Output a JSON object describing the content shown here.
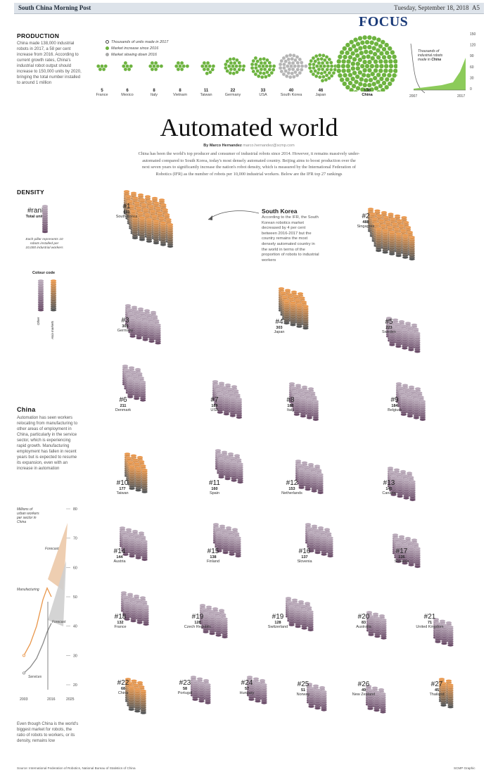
{
  "masthead": {
    "paper": "South China Morning Post",
    "date": "Tuesday, September 18, 2018",
    "page": "A5",
    "section": "FOCUS"
  },
  "production": {
    "heading": "PRODUCTION",
    "body": "China made 138,000 industrial robots in 2017, a 58 per cent increase from 2016. According to current growth rates, China's industrial robot output should increase to 150,000 units by 2020, bringing the total number installed to around 1 million",
    "legend": [
      "Thousands of units made in 2017",
      "Market increase since 2016",
      "Market slowing down 2016"
    ],
    "countries": [
      {
        "count": "5",
        "name": "France",
        "trend": "up"
      },
      {
        "count": "6",
        "name": "Mexico",
        "trend": "up"
      },
      {
        "count": "8",
        "name": "Italy",
        "trend": "up"
      },
      {
        "count": "8",
        "name": "Vietnam",
        "trend": "up"
      },
      {
        "count": "11",
        "name": "Taiwan",
        "trend": "up"
      },
      {
        "count": "22",
        "name": "Germany",
        "trend": "up"
      },
      {
        "count": "33",
        "name": "USA",
        "trend": "up"
      },
      {
        "count": "40",
        "name": "South Korea",
        "trend": "down"
      },
      {
        "count": "46",
        "name": "Japan",
        "trend": "up"
      },
      {
        "count": "138",
        "name": "China",
        "trend": "up"
      }
    ],
    "mini_chart": {
      "label": "Thousands of industrial robots made in China",
      "y_ticks": [
        "150",
        "120",
        "90",
        "60",
        "30",
        "0"
      ],
      "x_ticks": [
        "2007",
        "2017"
      ]
    }
  },
  "article": {
    "title": "Automated world",
    "byline_name": "By Marco Hernandez",
    "byline_email": "marco.hernandez@scmp.com",
    "intro": "China has been the world's top producer and consumer of industrial robots since 2014. However, it remains massively under-automated compared to South Korea, today's most densely automated country. Beijing aims to boost production over the next seven years to significantly increase the nation's robot density, which is measured by the International Federation of Robotics (IFR) as the number of robots per 10,000 industrial workers. Below are the IFR top 27 rankings"
  },
  "density_legend": {
    "heading": "DENSITY",
    "rank_label": "#rank",
    "total_label": "Total units",
    "pillar_note": "Each pillar represents 10 robots installed per 10,000 industrial workers",
    "colour_heading": "Colour code",
    "colour_other": "Other",
    "colour_asia": "Asia markets",
    "colors": {
      "orange": "#e9964a",
      "purple": "#6b4d69",
      "gray": "#8a8a8a",
      "green": "#6db33f",
      "green_light": "#a5d46a",
      "navy": "#1a3a78"
    }
  },
  "callout": {
    "title": "South Korea",
    "body": "According to the IFR, the South Korean robotics market decreased by 4 per cent between 2016-2017 but the country remains the most densely automated country in the world in terms of the proportion of robots to industrial workers"
  },
  "rankings": [
    {
      "rank": "#1",
      "total": "631",
      "country": "South Korea",
      "asia": true
    },
    {
      "rank": "#2",
      "total": "488",
      "country": "Singapore",
      "asia": true
    },
    {
      "rank": "#3",
      "total": "309",
      "country": "Germany",
      "asia": false
    },
    {
      "rank": "#4",
      "total": "303",
      "country": "Japan",
      "asia": true
    },
    {
      "rank": "#5",
      "total": "223",
      "country": "Sweden",
      "asia": false
    },
    {
      "rank": "#6",
      "total": "211",
      "country": "Denmark",
      "asia": false
    },
    {
      "rank": "#7",
      "total": "189",
      "country": "USA",
      "asia": false
    },
    {
      "rank": "#8",
      "total": "185",
      "country": "Italy",
      "asia": false
    },
    {
      "rank": "#9",
      "total": "184",
      "country": "Belgium",
      "asia": false
    },
    {
      "rank": "#10",
      "total": "177",
      "country": "Taiwan",
      "asia": true
    },
    {
      "rank": "#11",
      "total": "160",
      "country": "Spain",
      "asia": false
    },
    {
      "rank": "#12",
      "total": "153",
      "country": "Netherlands",
      "asia": false
    },
    {
      "rank": "#13",
      "total": "145",
      "country": "Canada",
      "asia": false
    },
    {
      "rank": "#14",
      "total": "144",
      "country": "Austria",
      "asia": false
    },
    {
      "rank": "#15",
      "total": "138",
      "country": "Finland",
      "asia": false
    },
    {
      "rank": "#16",
      "total": "137",
      "country": "Slovenia",
      "asia": false
    },
    {
      "rank": "#17",
      "total": "135",
      "country": "Slovakia",
      "asia": false
    },
    {
      "rank": "#18",
      "total": "132",
      "country": "France",
      "asia": false
    },
    {
      "rank": "#19",
      "total": "128",
      "country": "Czech Republic",
      "asia": false
    },
    {
      "rank": "#19",
      "total": "128",
      "country": "Switzerland",
      "asia": false
    },
    {
      "rank": "#20",
      "total": "83",
      "country": "Australia",
      "asia": false
    },
    {
      "rank": "#21",
      "total": "71",
      "country": "United Kingdom",
      "asia": false
    },
    {
      "rank": "#22",
      "total": "68",
      "country": "China",
      "asia": true
    },
    {
      "rank": "#23",
      "total": "58",
      "country": "Portugal",
      "asia": false
    },
    {
      "rank": "#24",
      "total": "57",
      "country": "Hungary",
      "asia": false
    },
    {
      "rank": "#25",
      "total": "51",
      "country": "Norway",
      "asia": false
    },
    {
      "rank": "#26",
      "total": "49",
      "country": "New Zealand",
      "asia": false
    },
    {
      "rank": "#27",
      "total": "45",
      "country": "Thailand",
      "asia": true
    }
  ],
  "china_box": {
    "heading": "China",
    "body": "Automation has seen workers relocating from manufacturing to other areas of employment in China, particularly in the service sector, which is experiencing rapid growth. Manufacturing employment has fallen in recent years but is expected to resume its expansion, even with an increase in automation",
    "closing": "Even though China is the world's biggest market for robots, the ratio of robots to workers, or its density, remains low"
  },
  "chart_data": {
    "type": "line",
    "ylabel": "Millions of urban workers per sector in China",
    "y_ticks": [
      "80",
      "70",
      "60",
      "50",
      "40",
      "30",
      "20"
    ],
    "ylim": [
      20,
      80
    ],
    "x_ticks": [
      "2003",
      "2016",
      "2025"
    ],
    "series": [
      {
        "name": "Manufacturing",
        "x": [
          2003,
          2006,
          2009,
          2012,
          2014,
          2016
        ],
        "y": [
          30,
          34,
          40,
          49,
          53,
          50
        ]
      },
      {
        "name": "Services",
        "x": [
          2003,
          2006,
          2009,
          2012,
          2014,
          2016
        ],
        "y": [
          24,
          26,
          29,
          34,
          38,
          41
        ]
      }
    ],
    "forecast_labels": [
      "Forecast",
      "Forecast"
    ]
  },
  "footer": {
    "source": "Source: International Federation of Robotics, National Bureau of Statistics of China",
    "credit": "SCMP Graphic"
  }
}
